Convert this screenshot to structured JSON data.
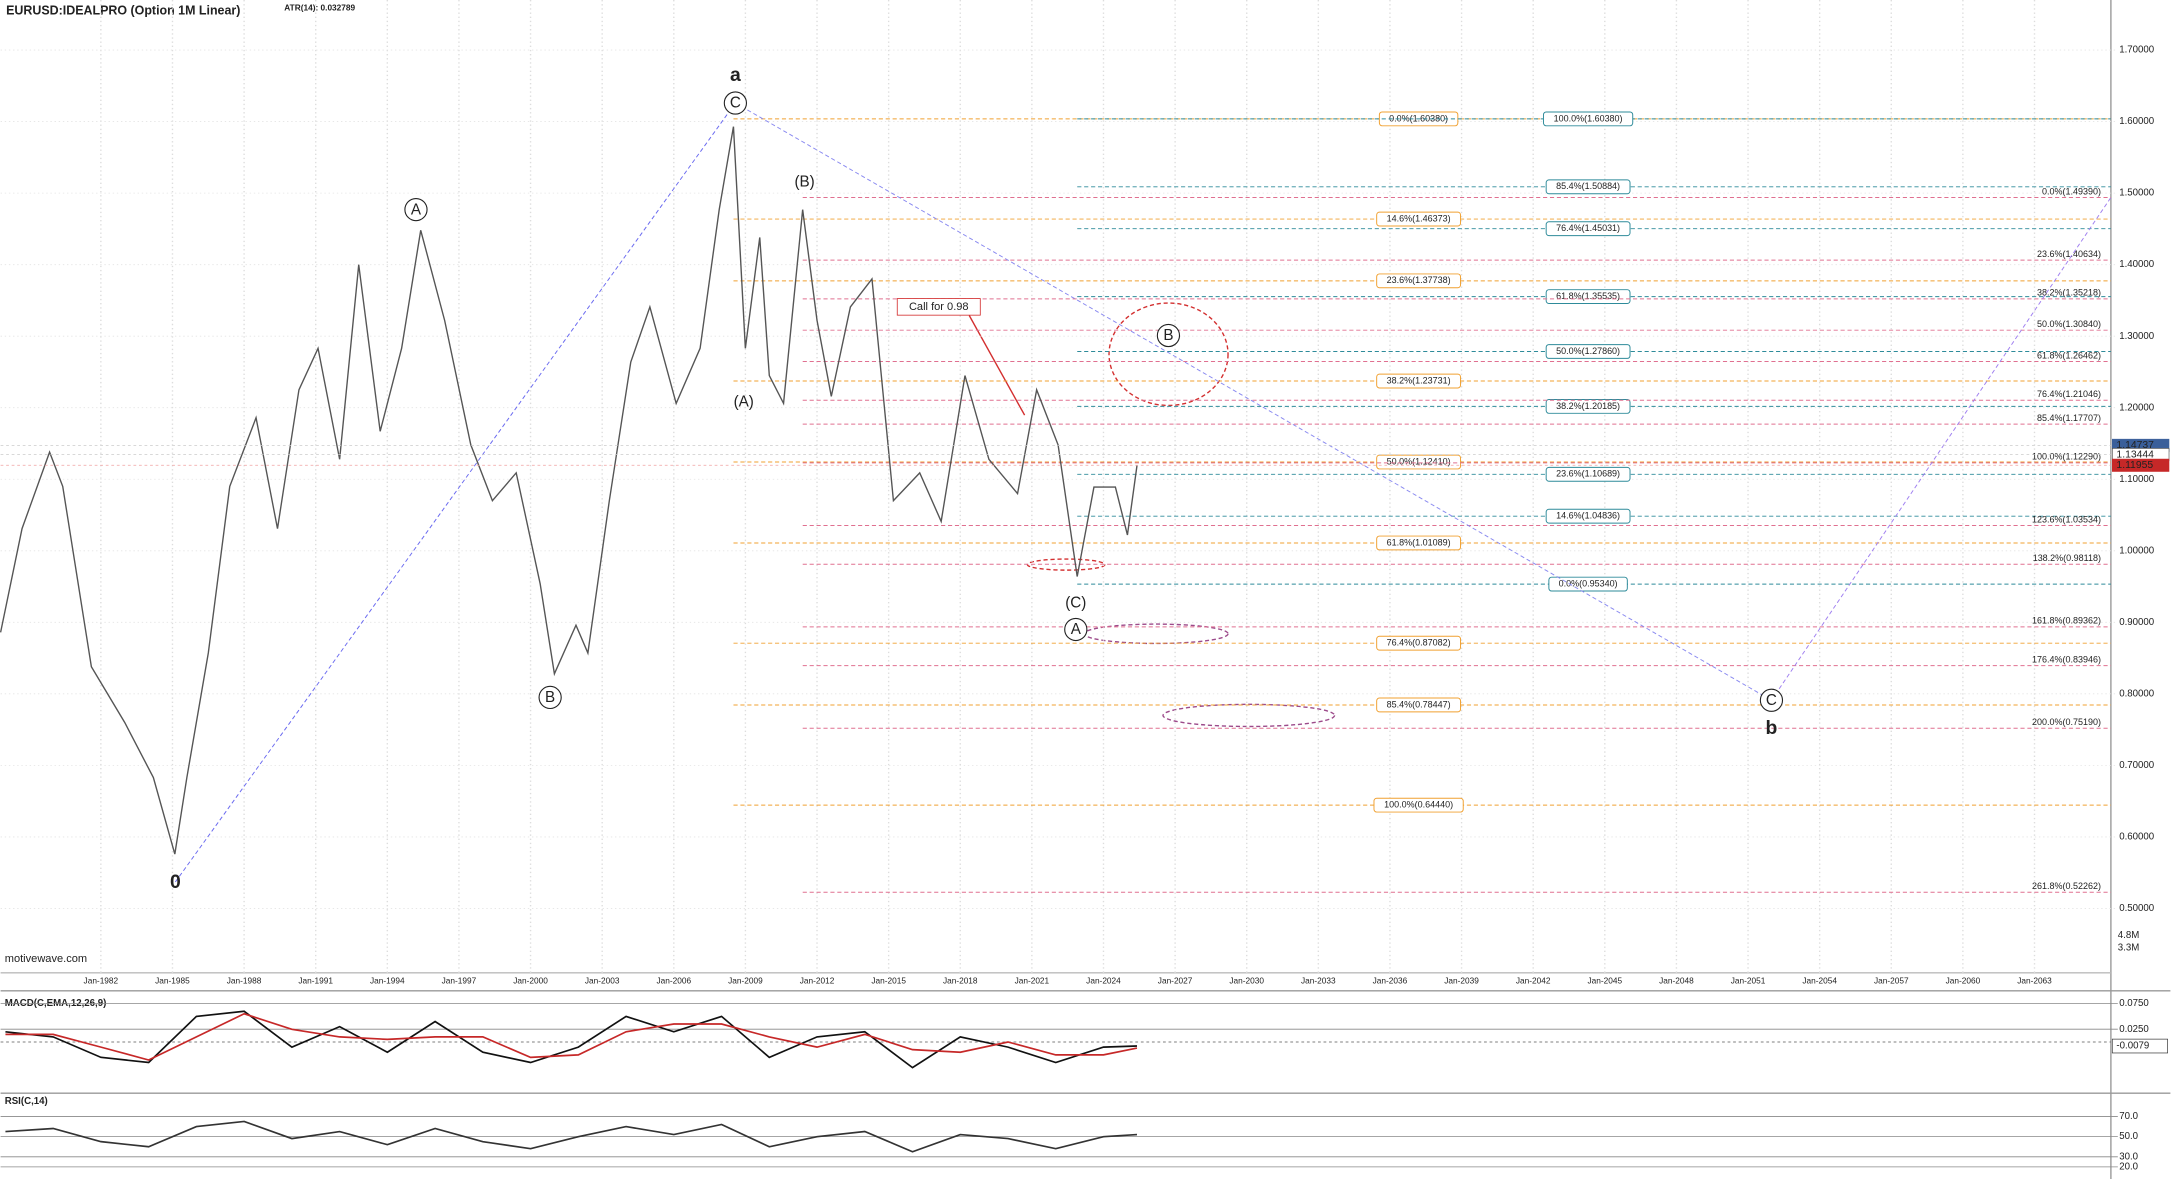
{
  "watermark": "motivewave.com",
  "chart_data": [
    {
      "type": "line",
      "title": "EURUSD:IDEALPRO (Option 1M Linear)",
      "subtitle": "ATR(14): 0.032789",
      "color": "#555555",
      "x": [
        1977.8,
        1978.7,
        1979.85,
        1980.4,
        1981.6,
        1983.0,
        1984.2,
        1985.1,
        1985.6,
        1986.5,
        1987.4,
        1988.5,
        1989.4,
        1990.3,
        1991.1,
        1992.0,
        1992.8,
        1993.7,
        1994.6,
        1995.4,
        1996.4,
        1997.5,
        1998.4,
        1999.4,
        2000.4,
        2001.0,
        2001.9,
        2002.4,
        2003.3,
        2004.2,
        2005.0,
        2006.1,
        2007.1,
        2007.9,
        2008.5,
        2009.0,
        2009.6,
        2010.0,
        2010.6,
        2011.4,
        2012.0,
        2012.6,
        2013.4,
        2014.3,
        2015.2,
        2016.3,
        2017.2,
        2018.2,
        2019.2,
        2020.4,
        2021.2,
        2022.1,
        2022.9,
        2023.6,
        2024.5,
        2025.0,
        2025.4
      ],
      "values": [
        0.886,
        1.031,
        1.138,
        1.09,
        0.838,
        0.76,
        0.683,
        0.576,
        0.683,
        0.857,
        1.09,
        1.186,
        1.031,
        1.225,
        1.283,
        1.128,
        1.4,
        1.167,
        1.283,
        1.448,
        1.322,
        1.148,
        1.07,
        1.109,
        0.954,
        0.828,
        0.896,
        0.857,
        1.07,
        1.264,
        1.341,
        1.206,
        1.283,
        1.477,
        1.593,
        1.283,
        1.438,
        1.245,
        1.206,
        1.477,
        1.322,
        1.216,
        1.341,
        1.38,
        1.07,
        1.109,
        1.041,
        1.245,
        1.128,
        1.08,
        1.225,
        1.148,
        0.964,
        1.089,
        1.089,
        1.022,
        1.119
      ],
      "xlim": [
        1977.8,
        2066.2
      ],
      "ylim": [
        0.41,
        1.77
      ],
      "grid": true,
      "xticks": [
        {
          "value": 1982,
          "label": "Jan-1982"
        },
        {
          "value": 1985,
          "label": "Jan-1985"
        },
        {
          "value": 1988,
          "label": "Jan-1988"
        },
        {
          "value": 1991,
          "label": "Jan-1991"
        },
        {
          "value": 1994,
          "label": "Jan-1994"
        },
        {
          "value": 1997,
          "label": "Jan-1997"
        },
        {
          "value": 2000,
          "label": "Jan-2000"
        },
        {
          "value": 2003,
          "label": "Jan-2003"
        },
        {
          "value": 2006,
          "label": "Jan-2006"
        },
        {
          "value": 2009,
          "label": "Jan-2009"
        },
        {
          "value": 2012,
          "label": "Jan-2012"
        },
        {
          "value": 2015,
          "label": "Jan-2015"
        },
        {
          "value": 2018,
          "label": "Jan-2018"
        },
        {
          "value": 2021,
          "label": "Jan-2021"
        },
        {
          "value": 2024,
          "label": "Jan-2024"
        },
        {
          "value": 2027,
          "label": "Jan-2027"
        },
        {
          "value": 2030,
          "label": "Jan-2030"
        },
        {
          "value": 2033,
          "label": "Jan-2033"
        },
        {
          "value": 2036,
          "label": "Jan-2036"
        },
        {
          "value": 2039,
          "label": "Jan-2039"
        },
        {
          "value": 2042,
          "label": "Jan-2042"
        },
        {
          "value": 2045,
          "label": "Jan-2045"
        },
        {
          "value": 2048,
          "label": "Jan-2048"
        },
        {
          "value": 2051,
          "label": "Jan-2051"
        },
        {
          "value": 2054,
          "label": "Jan-2054"
        },
        {
          "value": 2057,
          "label": "Jan-2057"
        },
        {
          "value": 2060,
          "label": "Jan-2060"
        },
        {
          "value": 2063,
          "label": "Jan-2063"
        }
      ],
      "yticks": [
        {
          "value": 0.5,
          "label": "0.50000"
        },
        {
          "value": 0.6,
          "label": "0.60000"
        },
        {
          "value": 0.7,
          "label": "0.70000"
        },
        {
          "value": 0.8,
          "label": "0.80000"
        },
        {
          "value": 0.9,
          "label": "0.90000"
        },
        {
          "value": 1.0,
          "label": "1.00000"
        },
        {
          "value": 1.1,
          "label": "1.10000"
        },
        {
          "value": 1.2,
          "label": "1.20000"
        },
        {
          "value": 1.3,
          "label": "1.30000"
        },
        {
          "value": 1.4,
          "label": "1.40000"
        },
        {
          "value": 1.5,
          "label": "1.50000"
        },
        {
          "value": 1.6,
          "label": "1.60000"
        },
        {
          "value": 1.7,
          "label": "1.70000"
        }
      ],
      "price_markers": [
        {
          "value": 1.14737,
          "label": "1.14737",
          "color": "#3a5f9a"
        },
        {
          "value": 1.13444,
          "label": "1.13444",
          "color": "#ffffff"
        },
        {
          "value": 1.11955,
          "label": "1.11955",
          "color": "#c62828"
        }
      ],
      "volume_labels": [
        "4.8M",
        "3.3M"
      ],
      "levels": [
        {
          "color": "#f0a030",
          "from": 2008.5,
          "label_at": 2037.2,
          "boxed": true,
          "items": [
            {
              "label": "0.0%(1.60380)",
              "value": 1.6038
            },
            {
              "label": "14.6%(1.46373)",
              "value": 1.46373
            },
            {
              "label": "23.6%(1.37738)",
              "value": 1.37738
            },
            {
              "label": "38.2%(1.23731)",
              "value": 1.23731
            },
            {
              "label": "50.0%(1.12410)",
              "value": 1.1241
            },
            {
              "label": "61.8%(1.01089)",
              "value": 1.01089
            },
            {
              "label": "76.4%(0.87082)",
              "value": 0.87082
            },
            {
              "label": "85.4%(0.78447)",
              "value": 0.78447
            },
            {
              "label": "100.0%(0.64440)",
              "value": 0.6444
            }
          ]
        },
        {
          "color": "#2e8b9a",
          "from": 2022.9,
          "label_at": 2044.3,
          "boxed": true,
          "items": [
            {
              "label": "100.0%(1.60380)",
              "value": 1.6038
            },
            {
              "label": "85.4%(1.50884)",
              "value": 1.50884
            },
            {
              "label": "76.4%(1.45031)",
              "value": 1.45031
            },
            {
              "label": "61.8%(1.35535)",
              "value": 1.35535
            },
            {
              "label": "50.0%(1.27860)",
              "value": 1.2786
            },
            {
              "label": "38.2%(1.20185)",
              "value": 1.20185
            },
            {
              "label": "23.6%(1.10689)",
              "value": 1.10689
            },
            {
              "label": "14.6%(1.04836)",
              "value": 1.04836
            },
            {
              "label": "0.0%(0.95340)",
              "value": 0.9534
            }
          ]
        },
        {
          "color": "#e07090",
          "from": 2011.4,
          "label_at": 2065.9,
          "boxed": false,
          "items": [
            {
              "label": "0.0%(1.49390)",
              "value": 1.4939
            },
            {
              "label": "23.6%(1.40634)",
              "value": 1.40634
            },
            {
              "label": "38.2%(1.35218)",
              "value": 1.35218
            },
            {
              "label": "50.0%(1.30840)",
              "value": 1.3084
            },
            {
              "label": "61.8%(1.26462)",
              "value": 1.26462
            },
            {
              "label": "76.4%(1.21046)",
              "value": 1.21046
            },
            {
              "label": "85.4%(1.17707)",
              "value": 1.17707
            },
            {
              "label": "100.0%(1.12290)",
              "value": 1.1229
            },
            {
              "label": "123.6%(1.03534)",
              "value": 1.03534
            },
            {
              "label": "138.2%(0.98118)",
              "value": 0.98118
            },
            {
              "label": "161.8%(0.89362)",
              "value": 0.89362
            },
            {
              "label": "176.4%(0.83946)",
              "value": 0.83946
            },
            {
              "label": "200.0%(0.75190)",
              "value": 0.7519
            },
            {
              "label": "261.8%(0.52262)",
              "value": 0.52262
            }
          ]
        }
      ],
      "wave_labels": [
        {
          "text": "a",
          "x": 2008.58,
          "y": 1.665,
          "circled": false,
          "color": "#1a237e"
        },
        {
          "text": "C",
          "x": 2008.58,
          "y": 1.626,
          "circled": true,
          "color": "#222222"
        },
        {
          "text": "0",
          "x": 1985.12,
          "y": 0.537,
          "circled": false,
          "color": "#1a237e"
        },
        {
          "text": "A",
          "x": 1995.2,
          "y": 1.477,
          "circled": true,
          "color": "#222222"
        },
        {
          "text": "B",
          "x": 2000.82,
          "y": 0.795,
          "circled": true,
          "color": "#222222"
        },
        {
          "text": "(A)",
          "x": 2008.93,
          "y": 1.208,
          "circled": false,
          "color": "#222222"
        },
        {
          "text": "(B)",
          "x": 2011.48,
          "y": 1.516,
          "circled": false,
          "color": "#222222"
        },
        {
          "text": "(C)",
          "x": 2022.84,
          "y": 0.927,
          "circled": false,
          "color": "#222222"
        },
        {
          "text": "A",
          "x": 2022.84,
          "y": 0.89,
          "circled": true,
          "color": "#222222"
        },
        {
          "text": "B",
          "x": 2026.72,
          "y": 1.301,
          "circled": true,
          "color": "#222222"
        },
        {
          "text": "C",
          "x": 2051.98,
          "y": 0.791,
          "circled": true,
          "color": "#222222"
        },
        {
          "text": "b",
          "x": 2051.98,
          "y": 0.752,
          "circled": false,
          "color": "#1a237e"
        }
      ],
      "annotation": {
        "text": "Call for 0.98",
        "x": 2017.1,
        "y": 1.341,
        "color": "#d32f2f"
      }
    },
    {
      "type": "line",
      "title": "MACD(C,EMA,12,26,9)",
      "xlim": [
        1977.8,
        2066.2
      ],
      "ylim": [
        -0.1,
        0.1
      ],
      "yticks": [
        {
          "value": 0.025,
          "label": "0.0250"
        },
        {
          "value": 0.075,
          "label": "0.0750"
        }
      ],
      "last_value": -0.0079,
      "x": [
        1978,
        1980,
        1982,
        1984,
        1986,
        1988,
        1990,
        1992,
        1994,
        1996,
        1998,
        2000,
        2002,
        2004,
        2006,
        2008,
        2010,
        2012,
        2014,
        2016,
        2018,
        2020,
        2022,
        2024,
        2025.4
      ],
      "series": [
        {
          "name": "MACD",
          "color": "#111111",
          "values": [
            0.02,
            0.01,
            -0.03,
            -0.04,
            0.05,
            0.06,
            -0.01,
            0.03,
            -0.02,
            0.04,
            -0.02,
            -0.04,
            -0.01,
            0.05,
            0.02,
            0.05,
            -0.03,
            0.01,
            0.02,
            -0.05,
            0.01,
            -0.01,
            -0.04,
            -0.01,
            -0.0079
          ]
        },
        {
          "name": "Signal",
          "color": "#c62828",
          "values": [
            0.015,
            0.015,
            -0.01,
            -0.035,
            0.01,
            0.055,
            0.025,
            0.01,
            0.005,
            0.01,
            0.01,
            -0.03,
            -0.025,
            0.02,
            0.035,
            0.035,
            0.01,
            -0.01,
            0.015,
            -0.015,
            -0.02,
            0.0,
            -0.025,
            -0.025,
            -0.012
          ]
        }
      ]
    },
    {
      "type": "line",
      "title": "RSI(C,14)",
      "xlim": [
        1977.8,
        2066.2
      ],
      "ylim": [
        8,
        93
      ],
      "yticks": [
        {
          "value": 20,
          "label": "20.0"
        },
        {
          "value": 30,
          "label": "30.0"
        },
        {
          "value": 50,
          "label": "50.0"
        },
        {
          "value": 70,
          "label": "70.0"
        }
      ],
      "x": [
        1978,
        1980,
        1982,
        1984,
        1986,
        1988,
        1990,
        1992,
        1994,
        1996,
        1998,
        2000,
        2002,
        2004,
        2006,
        2008,
        2010,
        2012,
        2014,
        2016,
        2018,
        2020,
        2022,
        2024,
        2025.4
      ],
      "series": [
        {
          "name": "RSI",
          "color": "#333333",
          "values": [
            55,
            58,
            45,
            40,
            60,
            65,
            48,
            55,
            42,
            58,
            45,
            38,
            50,
            60,
            52,
            62,
            40,
            50,
            55,
            35,
            52,
            48,
            38,
            50,
            52
          ]
        }
      ]
    }
  ]
}
